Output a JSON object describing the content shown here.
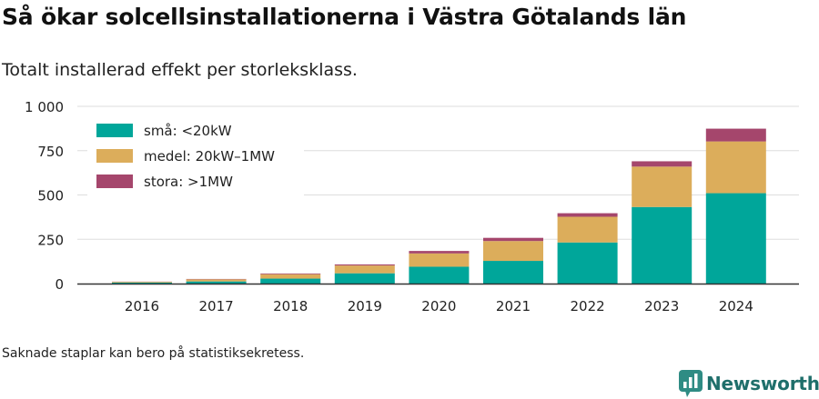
{
  "title": "Så ökar solcellsinstallationerna i Västra Götalands län",
  "subtitle": "Totalt installerad effekt per storleksklass.",
  "footnote": "Saknade staplar kan bero på statistiksekretess.",
  "brand": {
    "name": "Newsworthy",
    "icon": "newsworthy-logo-icon",
    "color": "#2f8c84"
  },
  "chart_data": {
    "type": "bar",
    "stacked": true,
    "categories": [
      "2016",
      "2017",
      "2018",
      "2019",
      "2020",
      "2021",
      "2022",
      "2023",
      "2024"
    ],
    "series": [
      {
        "name": "små: <20kW",
        "color": "#00a69a",
        "values": [
          6,
          12,
          28,
          58,
          95,
          128,
          232,
          432,
          510
        ]
      },
      {
        "name": "medel: 20kW–1MW",
        "color": "#dcad5b",
        "values": [
          4,
          12,
          25,
          44,
          75,
          112,
          145,
          228,
          292
        ]
      },
      {
        "name": "stora: >1MW",
        "color": "#a5466c",
        "values": [
          1,
          2,
          4,
          6,
          14,
          18,
          20,
          30,
          72
        ]
      }
    ],
    "ylim": [
      0,
      1000
    ],
    "yticks": [
      0,
      250,
      500,
      750,
      1000
    ],
    "ytick_labels": [
      "0",
      "250",
      "500",
      "750",
      "1 000"
    ],
    "xlabel": "",
    "ylabel": "",
    "grid": true,
    "legend": "top-left"
  }
}
